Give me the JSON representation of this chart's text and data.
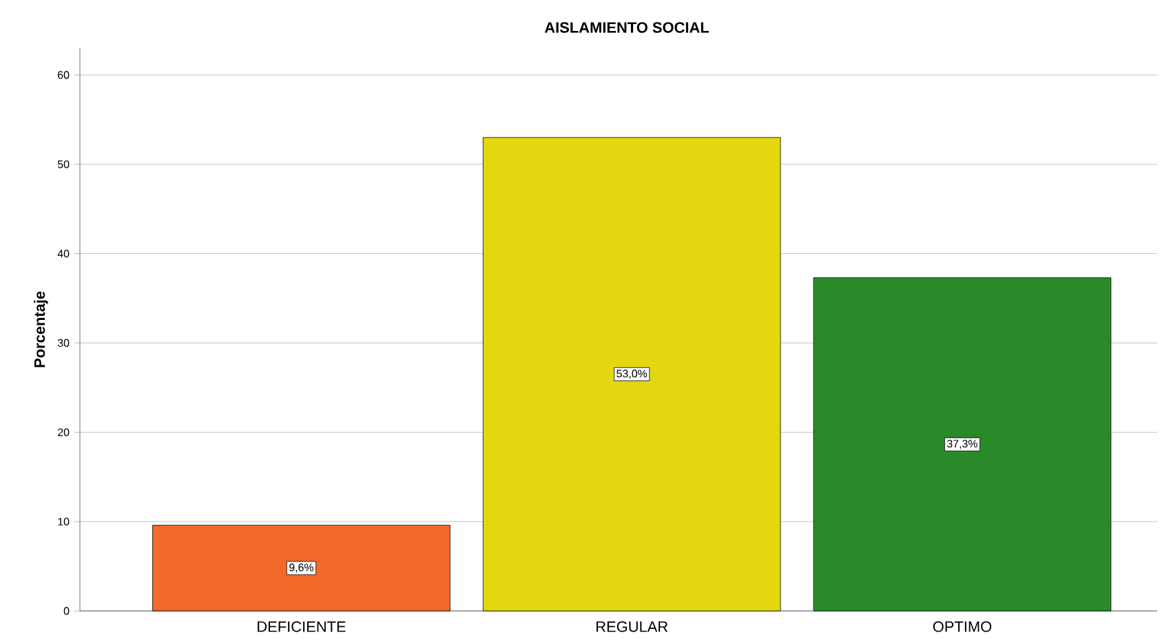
{
  "chart_data": {
    "type": "bar",
    "title": "AISLAMIENTO SOCIAL",
    "ylabel": "Porcentaje",
    "categories": [
      "DEFICIENTE",
      "REGULAR",
      "OPTIMO"
    ],
    "values": [
      9.6,
      53.0,
      37.3
    ],
    "colors": [
      "#f26a2a",
      "#e3d80f",
      "#2a8a2a"
    ],
    "value_labels": [
      "9,6%",
      "53,0%",
      "37,3%"
    ],
    "ylim": [
      0,
      63
    ],
    "yticks": [
      0,
      10,
      20,
      30,
      40,
      50,
      60
    ],
    "grid": "y"
  }
}
